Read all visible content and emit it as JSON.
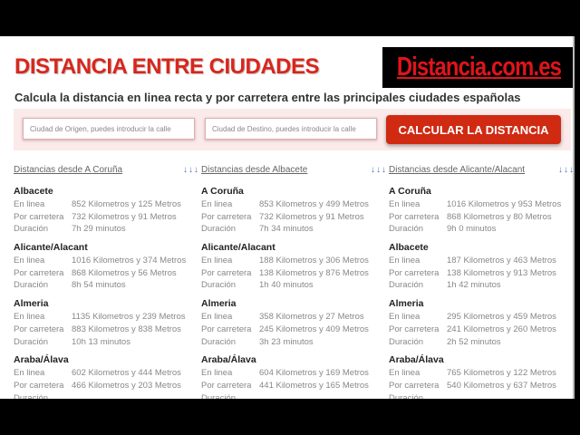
{
  "header": {
    "title": "DISTANCIA ENTRE CIUDADES",
    "logo": "Distancia.com.es",
    "subtitle": "Calcula la distancia en linea recta y por carretera entre las principales ciudades españolas"
  },
  "search": {
    "origin_placeholder": "Ciudad de Origen, puedes introducir la calle",
    "dest_placeholder": "Ciudad de Destino, puedes introducir la calle",
    "button": "CALCULAR LA DISTANCIA"
  },
  "labels": {
    "linea": "En linea",
    "carretera": "Por carretera",
    "duracion": "Duración"
  },
  "arrows": "↓↓↓",
  "columns": [
    {
      "heading": "Distancias desde A Coruña",
      "cities": [
        {
          "name": "Albacete",
          "linea": "852 Kilometros y 125 Metros",
          "carretera": "732 Kilometros y 91 Metros",
          "duracion": "7h 29 minutos"
        },
        {
          "name": "Alicante/Alacant",
          "linea": "1016 Kilometros y 374 Metros",
          "carretera": "868 Kilometros y 56 Metros",
          "duracion": "8h 54 minutos"
        },
        {
          "name": "Almeria",
          "linea": "1135 Kilometros y 239 Metros",
          "carretera": "883 Kilometros y 838 Metros",
          "duracion": "10h 13 minutos"
        },
        {
          "name": "Araba/Álava",
          "linea": "602 Kilometros y 444 Metros",
          "carretera": "466 Kilometros y 203 Metros"
        }
      ]
    },
    {
      "heading": "Distancias desde Albacete",
      "cities": [
        {
          "name": "A Coruña",
          "linea": "853 Kilometros y 499 Metros",
          "carretera": "732 Kilometros y 91 Metros",
          "duracion": "7h 34 minutos"
        },
        {
          "name": "Alicante/Alacant",
          "linea": "188 Kilometros y 306 Metros",
          "carretera": "138 Kilometros y 876 Metros",
          "duracion": "1h 40 minutos"
        },
        {
          "name": "Almeria",
          "linea": "358 Kilometros y 27 Metros",
          "carretera": "245 Kilometros y 409 Metros",
          "duracion": "3h 23 minutos"
        },
        {
          "name": "Araba/Álava",
          "linea": "604 Kilometros y 169 Metros",
          "carretera": "441 Kilometros y 165 Metros"
        }
      ]
    },
    {
      "heading": "Distancias desde Alicante/Alacant",
      "cities": [
        {
          "name": "A Coruña",
          "linea": "1016 Kilometros y 953 Metros",
          "carretera": "868 Kilometros y 80 Metros",
          "duracion": "9h 0 minutos"
        },
        {
          "name": "Albacete",
          "linea": "187 Kilometros y 463 Metros",
          "carretera": "138 Kilometros y 913 Metros",
          "duracion": "1h 42 minutos"
        },
        {
          "name": "Almeria",
          "linea": "295 Kilometros y 459 Metros",
          "carretera": "241 Kilometros y 260 Metros",
          "duracion": "2h 52 minutos"
        },
        {
          "name": "Araba/Álava",
          "linea": "765 Kilometros y 122 Metros",
          "carretera": "540 Kilometros y 637 Metros"
        }
      ]
    }
  ],
  "colors": {
    "brand_red": "#d9261c",
    "button": "#d02a12",
    "band": "#fbeaea"
  }
}
